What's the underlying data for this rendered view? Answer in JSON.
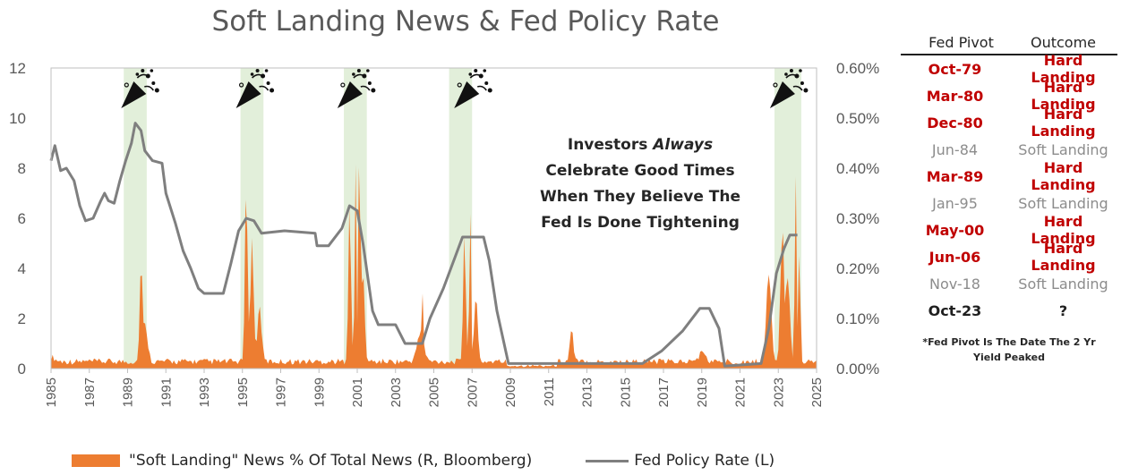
{
  "chart_data": {
    "type": "area",
    "title": "Soft Landing News & Fed Policy Rate",
    "annotation": [
      "Investors",
      "Always",
      "Celebrate Good Times",
      "When They Believe The",
      "Fed Is Done Tightening"
    ],
    "x_ticks": [
      "1985",
      "1987",
      "1989",
      "1991",
      "1993",
      "1995",
      "1997",
      "1999",
      "2001",
      "2003",
      "2005",
      "2007",
      "2009",
      "2011",
      "2013",
      "2015",
      "2017",
      "2019",
      "2021",
      "2023",
      "2025"
    ],
    "y_left": {
      "lim": [
        0,
        12
      ],
      "ticks": [
        "0",
        "2",
        "4",
        "6",
        "8",
        "10",
        "12"
      ]
    },
    "y_right": {
      "lim": [
        0,
        0.6
      ],
      "ticks": [
        "0.00%",
        "0.10%",
        "0.20%",
        "0.30%",
        "0.40%",
        "0.50%",
        "0.60%"
      ]
    },
    "shaded_periods": [
      [
        1988.8,
        1990.0
      ],
      [
        1994.9,
        1996.1
      ],
      [
        2000.3,
        2001.5
      ],
      [
        2005.8,
        2007.0
      ],
      [
        2022.8,
        2024.2
      ]
    ],
    "celebration_icons_at": [
      1989.6,
      1995.6,
      2000.9,
      2007.0,
      2023.5
    ],
    "icon": "party-popper-icon",
    "series": [
      {
        "name": "\"Soft Landing\" News % Of Total News (R, Bloomberg)",
        "axis": "right",
        "color": "#ed7d31",
        "type": "area",
        "baseline": 0.008,
        "spikes": [
          {
            "x": 1985.0,
            "v": 0.01,
            "w": 0.6
          },
          {
            "x": 1989.7,
            "v": 0.235,
            "w": 0.18
          },
          {
            "x": 1989.9,
            "v": 0.08,
            "w": 0.4
          },
          {
            "x": 1995.2,
            "v": 0.38,
            "w": 0.2
          },
          {
            "x": 1995.5,
            "v": 0.25,
            "w": 0.25
          },
          {
            "x": 1995.9,
            "v": 0.12,
            "w": 0.3
          },
          {
            "x": 2000.6,
            "v": 0.32,
            "w": 0.2
          },
          {
            "x": 2000.9,
            "v": 0.55,
            "w": 0.1
          },
          {
            "x": 2001.1,
            "v": 0.45,
            "w": 0.15
          },
          {
            "x": 2001.3,
            "v": 0.2,
            "w": 0.25
          },
          {
            "x": 2004.3,
            "v": 0.06,
            "w": 0.5
          },
          {
            "x": 2004.4,
            "v": 0.11,
            "w": 0.1
          },
          {
            "x": 2006.6,
            "v": 0.26,
            "w": 0.2
          },
          {
            "x": 2006.9,
            "v": 0.38,
            "w": 0.12
          },
          {
            "x": 2007.2,
            "v": 0.15,
            "w": 0.25
          },
          {
            "x": 2012.2,
            "v": 0.07,
            "w": 0.25
          },
          {
            "x": 2019.0,
            "v": 0.02,
            "w": 0.5
          },
          {
            "x": 2022.5,
            "v": 0.2,
            "w": 0.35
          },
          {
            "x": 2023.2,
            "v": 0.29,
            "w": 0.25
          },
          {
            "x": 2023.5,
            "v": 0.2,
            "w": 0.3
          },
          {
            "x": 2023.9,
            "v": 0.46,
            "w": 0.12
          },
          {
            "x": 2024.1,
            "v": 0.25,
            "w": 0.15
          }
        ]
      },
      {
        "name": "Fed Policy Rate (L)",
        "axis": "left",
        "color": "#7f7f7f",
        "type": "line",
        "points": [
          [
            1985.0,
            8.3
          ],
          [
            1985.2,
            8.9
          ],
          [
            1985.5,
            7.9
          ],
          [
            1985.8,
            8.0
          ],
          [
            1986.2,
            7.5
          ],
          [
            1986.5,
            6.5
          ],
          [
            1986.8,
            5.9
          ],
          [
            1987.2,
            6.0
          ],
          [
            1987.6,
            6.7
          ],
          [
            1987.8,
            7.0
          ],
          [
            1988.0,
            6.7
          ],
          [
            1988.3,
            6.6
          ],
          [
            1988.6,
            7.5
          ],
          [
            1988.9,
            8.3
          ],
          [
            1989.2,
            9.0
          ],
          [
            1989.4,
            9.8
          ],
          [
            1989.7,
            9.5
          ],
          [
            1989.9,
            8.7
          ],
          [
            1990.3,
            8.3
          ],
          [
            1990.8,
            8.2
          ],
          [
            1991.0,
            7.0
          ],
          [
            1991.5,
            5.8
          ],
          [
            1991.9,
            4.7
          ],
          [
            1992.3,
            4.0
          ],
          [
            1992.7,
            3.2
          ],
          [
            1993.0,
            3.0
          ],
          [
            1994.0,
            3.0
          ],
          [
            1994.4,
            4.2
          ],
          [
            1994.8,
            5.5
          ],
          [
            1995.2,
            6.0
          ],
          [
            1995.6,
            5.9
          ],
          [
            1996.0,
            5.4
          ],
          [
            1997.2,
            5.5
          ],
          [
            1998.8,
            5.4
          ],
          [
            1998.9,
            4.9
          ],
          [
            1999.5,
            4.9
          ],
          [
            2000.2,
            5.6
          ],
          [
            2000.6,
            6.5
          ],
          [
            2001.0,
            6.3
          ],
          [
            2001.3,
            5.0
          ],
          [
            2001.8,
            2.3
          ],
          [
            2002.1,
            1.75
          ],
          [
            2003.0,
            1.75
          ],
          [
            2003.5,
            1.0
          ],
          [
            2004.4,
            1.0
          ],
          [
            2004.8,
            2.0
          ],
          [
            2005.5,
            3.2
          ],
          [
            2006.5,
            5.25
          ],
          [
            2007.6,
            5.25
          ],
          [
            2007.9,
            4.3
          ],
          [
            2008.3,
            2.3
          ],
          [
            2008.9,
            0.2
          ],
          [
            2015.9,
            0.2
          ],
          [
            2016.9,
            0.7
          ],
          [
            2018.0,
            1.5
          ],
          [
            2018.9,
            2.4
          ],
          [
            2019.4,
            2.4
          ],
          [
            2019.9,
            1.6
          ],
          [
            2020.2,
            0.1
          ],
          [
            2022.1,
            0.2
          ],
          [
            2022.5,
            1.6
          ],
          [
            2022.9,
            3.8
          ],
          [
            2023.3,
            4.8
          ],
          [
            2023.6,
            5.33
          ],
          [
            2024.0,
            5.33
          ]
        ]
      }
    ],
    "xlabel": "",
    "ylabel": ""
  },
  "table": {
    "headers": [
      "Fed Pivot",
      "Outcome"
    ],
    "rows": [
      {
        "pivot": "Oct-79",
        "outcome": "Hard Landing",
        "kind": "hard"
      },
      {
        "pivot": "Mar-80",
        "outcome": "Hard Landing",
        "kind": "hard"
      },
      {
        "pivot": "Dec-80",
        "outcome": "Hard Landing",
        "kind": "hard"
      },
      {
        "pivot": "Jun-84",
        "outcome": "Soft Landing",
        "kind": "soft"
      },
      {
        "pivot": "Mar-89",
        "outcome": "Hard Landing",
        "kind": "hard"
      },
      {
        "pivot": "Jan-95",
        "outcome": "Soft Landing",
        "kind": "soft"
      },
      {
        "pivot": "May-00",
        "outcome": "Hard Landing",
        "kind": "hard"
      },
      {
        "pivot": "Jun-06",
        "outcome": "Hard Landing",
        "kind": "hard"
      },
      {
        "pivot": "Nov-18",
        "outcome": "Soft Landing",
        "kind": "soft"
      },
      {
        "pivot": "Oct-23",
        "outcome": "?",
        "kind": "cur"
      }
    ],
    "footnote": [
      "*Fed Pivot Is The Date The 2 Yr",
      "Yield Peaked"
    ]
  },
  "legend": {
    "area_label": "\"Soft Landing\" News % Of Total News (R, Bloomberg)",
    "line_label": "Fed Policy Rate (L)"
  },
  "colors": {
    "shade": "#e2efda",
    "area": "#ed7d31",
    "line": "#7f7f7f",
    "hard": "#c00000",
    "soft": "#8c8c8c"
  }
}
